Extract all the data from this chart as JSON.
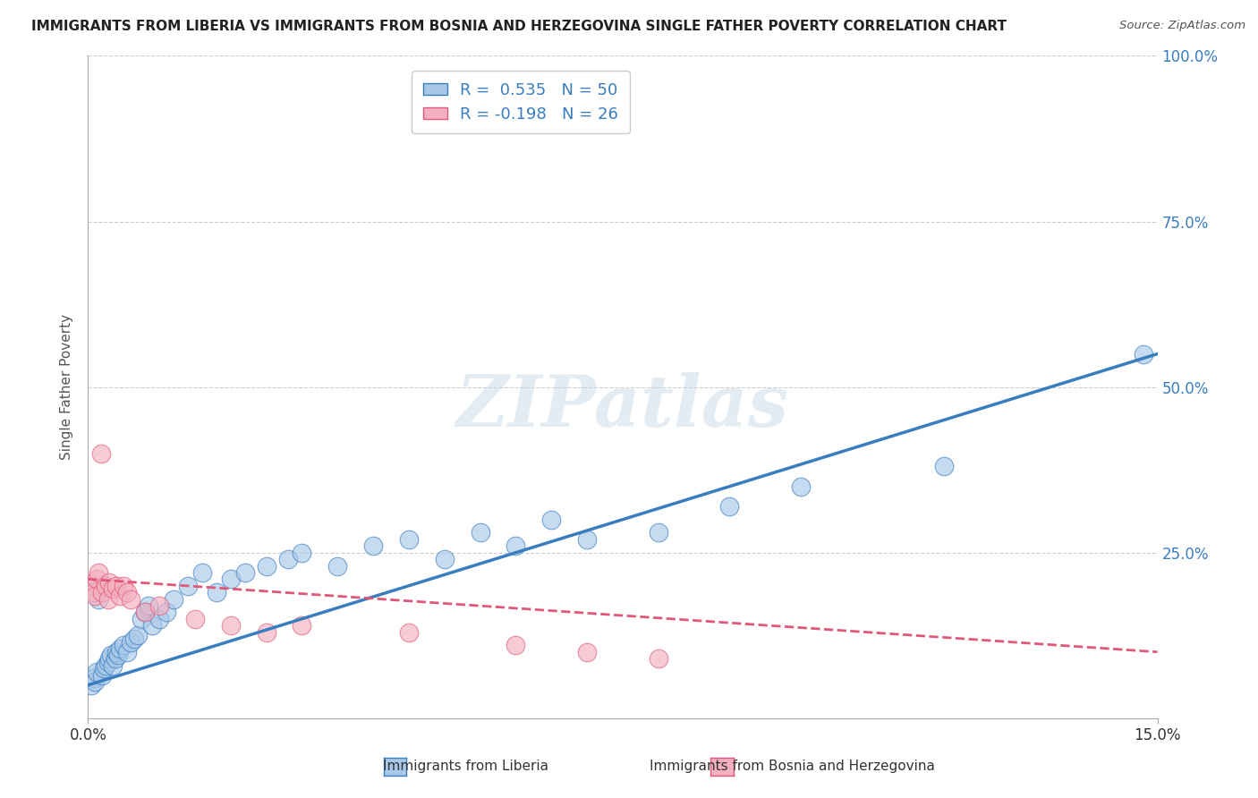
{
  "title": "IMMIGRANTS FROM LIBERIA VS IMMIGRANTS FROM BOSNIA AND HERZEGOVINA SINGLE FATHER POVERTY CORRELATION CHART",
  "source": "Source: ZipAtlas.com",
  "ylabel": "Single Father Poverty",
  "x_min": 0.0,
  "x_max": 15.0,
  "y_min": 0.0,
  "y_max": 100.0,
  "x_tick_labels": [
    "0.0%",
    "15.0%"
  ],
  "y_ticks": [
    0.0,
    25.0,
    50.0,
    75.0,
    100.0
  ],
  "y_tick_labels": [
    "",
    "25.0%",
    "50.0%",
    "75.0%",
    "100.0%"
  ],
  "legend_label1": "Immigrants from Liberia",
  "legend_label2": "Immigrants from Bosnia and Herzegovina",
  "R1": 0.535,
  "N1": 50,
  "R2": -0.198,
  "N2": 26,
  "color_liberia": "#a8c8e8",
  "color_bosnia": "#f4b0c0",
  "color_line_liberia": "#3a7dbf",
  "color_line_bosnia": "#e05878",
  "background_color": "#ffffff",
  "grid_color": "#cccccc",
  "liberia_x": [
    0.05,
    0.08,
    0.1,
    0.12,
    0.15,
    0.18,
    0.2,
    0.22,
    0.25,
    0.28,
    0.3,
    0.32,
    0.35,
    0.38,
    0.4,
    0.42,
    0.45,
    0.5,
    0.55,
    0.6,
    0.65,
    0.7,
    0.75,
    0.8,
    0.85,
    0.9,
    1.0,
    1.1,
    1.2,
    1.4,
    1.6,
    1.8,
    2.0,
    2.2,
    2.5,
    2.8,
    3.0,
    3.5,
    4.0,
    4.5,
    5.0,
    5.5,
    6.0,
    6.5,
    7.0,
    8.0,
    9.0,
    10.0,
    12.0,
    14.8
  ],
  "liberia_y": [
    5.0,
    6.0,
    5.5,
    7.0,
    18.0,
    20.0,
    6.5,
    7.5,
    8.0,
    8.5,
    9.0,
    9.5,
    8.0,
    9.0,
    10.0,
    9.5,
    10.5,
    11.0,
    10.0,
    11.5,
    12.0,
    12.5,
    15.0,
    16.0,
    17.0,
    14.0,
    15.0,
    16.0,
    18.0,
    20.0,
    22.0,
    19.0,
    21.0,
    22.0,
    23.0,
    24.0,
    25.0,
    23.0,
    26.0,
    27.0,
    24.0,
    28.0,
    26.0,
    30.0,
    27.0,
    28.0,
    32.0,
    35.0,
    38.0,
    55.0
  ],
  "bosnia_x": [
    0.05,
    0.08,
    0.1,
    0.12,
    0.15,
    0.18,
    0.2,
    0.25,
    0.28,
    0.3,
    0.35,
    0.4,
    0.45,
    0.5,
    0.55,
    0.6,
    0.8,
    1.0,
    1.5,
    2.0,
    2.5,
    3.0,
    4.5,
    6.0,
    7.0,
    8.0
  ],
  "bosnia_y": [
    20.0,
    19.0,
    18.5,
    21.0,
    22.0,
    40.0,
    19.0,
    20.0,
    18.0,
    20.5,
    19.5,
    20.0,
    18.5,
    20.0,
    19.0,
    18.0,
    16.0,
    17.0,
    15.0,
    14.0,
    13.0,
    14.0,
    13.0,
    11.0,
    10.0,
    9.0
  ],
  "liberia_trend_x": [
    0.0,
    15.0
  ],
  "liberia_trend_y": [
    5.0,
    55.0
  ],
  "bosnia_trend_x": [
    0.0,
    15.0
  ],
  "bosnia_trend_y": [
    21.0,
    10.0
  ]
}
